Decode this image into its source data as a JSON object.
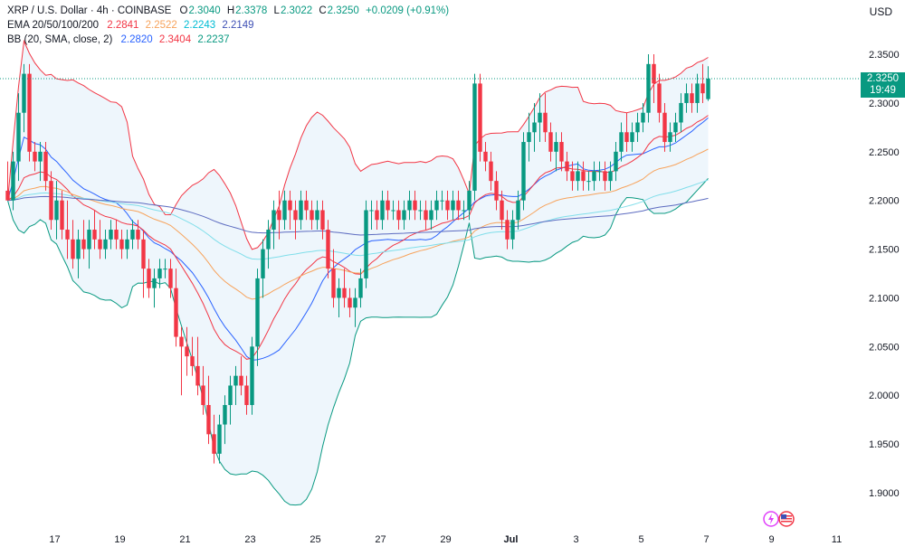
{
  "legend": {
    "symbol": "XRP / U.S. Dollar · 4h · COINBASE",
    "open_label": "O",
    "open": "2.3040",
    "high_label": "H",
    "high": "2.3378",
    "low_label": "L",
    "low": "2.3022",
    "close_label": "C",
    "close": "2.3250",
    "change": "+0.0209 (+0.91%)",
    "ema_label": "EMA 20/50/100/200",
    "ema20": "2.2841",
    "ema50": "2.2522",
    "ema100": "2.2243",
    "ema200": "2.2149",
    "bb_label": "BB (20, SMA, close, 2)",
    "bb_basis": "2.2820",
    "bb_upper": "2.3404",
    "bb_lower": "2.2237"
  },
  "currency": "USD",
  "price_badge": {
    "price": "2.3250",
    "countdown": "19:49"
  },
  "colors": {
    "up": "#089981",
    "down": "#f23645",
    "ema20": "#f23645",
    "ema50": "#f7a35c",
    "ema100": "#80deea",
    "ema200": "#5c6bc0",
    "bb_basis": "#2962ff",
    "bb_upper": "#f23645",
    "bb_lower": "#089981",
    "bb_fill": "#eef6fc"
  },
  "chart_data": {
    "type": "candlestick",
    "ylim": [
      1.86,
      2.38
    ],
    "y_ticks": [
      "2.3500",
      "2.3000",
      "2.2500",
      "2.2000",
      "2.1500",
      "2.1000",
      "2.0500",
      "2.0000",
      "1.9500",
      "1.9000"
    ],
    "x_ticks": [
      {
        "label": "17",
        "bar": 4
      },
      {
        "label": "19",
        "bar": 16
      },
      {
        "label": "21",
        "bar": 28
      },
      {
        "label": "23",
        "bar": 40
      },
      {
        "label": "25",
        "bar": 52
      },
      {
        "label": "27",
        "bar": 64
      },
      {
        "label": "29",
        "bar": 76
      },
      {
        "label": "Jul",
        "bar": 88
      },
      {
        "label": "3",
        "bar": 100
      },
      {
        "label": "5",
        "bar": 112
      },
      {
        "label": "7",
        "bar": 124
      },
      {
        "label": "9",
        "bar": 136
      },
      {
        "label": "11",
        "bar": 148
      }
    ],
    "last_price": 2.325,
    "candles": [
      [
        2.21,
        2.24,
        2.2,
        2.2
      ],
      [
        2.2,
        2.25,
        2.19,
        2.24
      ],
      [
        2.24,
        2.31,
        2.22,
        2.29
      ],
      [
        2.29,
        2.34,
        2.27,
        2.33
      ],
      [
        2.33,
        2.34,
        2.24,
        2.25
      ],
      [
        2.25,
        2.26,
        2.23,
        2.24
      ],
      [
        2.24,
        2.26,
        2.22,
        2.25
      ],
      [
        2.25,
        2.26,
        2.21,
        2.22
      ],
      [
        2.22,
        2.23,
        2.17,
        2.18
      ],
      [
        2.18,
        2.22,
        2.16,
        2.2
      ],
      [
        2.2,
        2.21,
        2.16,
        2.17
      ],
      [
        2.17,
        2.2,
        2.14,
        2.16
      ],
      [
        2.16,
        2.18,
        2.13,
        2.14
      ],
      [
        2.14,
        2.17,
        2.12,
        2.16
      ],
      [
        2.16,
        2.18,
        2.14,
        2.15
      ],
      [
        2.15,
        2.18,
        2.13,
        2.17
      ],
      [
        2.17,
        2.19,
        2.15,
        2.16
      ],
      [
        2.16,
        2.18,
        2.14,
        2.15
      ],
      [
        2.15,
        2.17,
        2.14,
        2.16
      ],
      [
        2.16,
        2.18,
        2.15,
        2.17
      ],
      [
        2.17,
        2.18,
        2.15,
        2.16
      ],
      [
        2.16,
        2.17,
        2.14,
        2.15
      ],
      [
        2.15,
        2.17,
        2.14,
        2.16
      ],
      [
        2.16,
        2.18,
        2.15,
        2.17
      ],
      [
        2.17,
        2.18,
        2.15,
        2.16
      ],
      [
        2.16,
        2.17,
        2.1,
        2.13
      ],
      [
        2.13,
        2.14,
        2.1,
        2.11
      ],
      [
        2.11,
        2.13,
        2.09,
        2.12
      ],
      [
        2.12,
        2.14,
        2.11,
        2.13
      ],
      [
        2.13,
        2.14,
        2.12,
        2.13
      ],
      [
        2.13,
        2.14,
        2.1,
        2.11
      ],
      [
        2.11,
        2.13,
        2.05,
        2.06
      ],
      [
        2.06,
        2.07,
        2.0,
        2.05
      ],
      [
        2.05,
        2.07,
        2.02,
        2.04
      ],
      [
        2.04,
        2.06,
        2.02,
        2.03
      ],
      [
        2.03,
        2.06,
        2.0,
        2.01
      ],
      [
        2.01,
        2.03,
        1.98,
        1.99
      ],
      [
        1.99,
        2.02,
        1.95,
        1.96
      ],
      [
        1.96,
        1.98,
        1.93,
        1.94
      ],
      [
        1.94,
        1.98,
        1.93,
        1.97
      ],
      [
        1.97,
        2.0,
        1.95,
        1.99
      ],
      [
        1.99,
        2.02,
        1.97,
        2.01
      ],
      [
        2.01,
        2.03,
        1.99,
        2.02
      ],
      [
        2.02,
        2.04,
        2.0,
        2.01
      ],
      [
        2.01,
        2.02,
        1.98,
        1.99
      ],
      [
        1.99,
        2.06,
        1.98,
        2.05
      ],
      [
        2.05,
        2.13,
        2.03,
        2.12
      ],
      [
        2.12,
        2.16,
        2.1,
        2.15
      ],
      [
        2.15,
        2.18,
        2.13,
        2.17
      ],
      [
        2.17,
        2.2,
        2.15,
        2.19
      ],
      [
        2.19,
        2.21,
        2.16,
        2.18
      ],
      [
        2.18,
        2.21,
        2.17,
        2.2
      ],
      [
        2.2,
        2.21,
        2.17,
        2.19
      ],
      [
        2.19,
        2.2,
        2.16,
        2.18
      ],
      [
        2.18,
        2.21,
        2.17,
        2.2
      ],
      [
        2.2,
        2.21,
        2.18,
        2.19
      ],
      [
        2.19,
        2.2,
        2.17,
        2.18
      ],
      [
        2.18,
        2.2,
        2.17,
        2.19
      ],
      [
        2.19,
        2.2,
        2.16,
        2.17
      ],
      [
        2.17,
        2.18,
        2.12,
        2.13
      ],
      [
        2.13,
        2.15,
        2.09,
        2.1
      ],
      [
        2.1,
        2.12,
        2.08,
        2.11
      ],
      [
        2.11,
        2.13,
        2.09,
        2.1
      ],
      [
        2.1,
        2.11,
        2.08,
        2.09
      ],
      [
        2.09,
        2.11,
        2.07,
        2.1
      ],
      [
        2.1,
        2.13,
        2.09,
        2.12
      ],
      [
        2.12,
        2.2,
        2.11,
        2.19
      ],
      [
        2.19,
        2.2,
        2.17,
        2.19
      ],
      [
        2.19,
        2.2,
        2.17,
        2.18
      ],
      [
        2.18,
        2.21,
        2.17,
        2.2
      ],
      [
        2.2,
        2.21,
        2.18,
        2.19
      ],
      [
        2.19,
        2.2,
        2.18,
        2.19
      ],
      [
        2.19,
        2.2,
        2.17,
        2.18
      ],
      [
        2.18,
        2.2,
        2.17,
        2.19
      ],
      [
        2.19,
        2.21,
        2.18,
        2.2
      ],
      [
        2.2,
        2.21,
        2.18,
        2.19
      ],
      [
        2.19,
        2.2,
        2.18,
        2.19
      ],
      [
        2.19,
        2.2,
        2.17,
        2.18
      ],
      [
        2.18,
        2.2,
        2.17,
        2.19
      ],
      [
        2.19,
        2.21,
        2.18,
        2.2
      ],
      [
        2.2,
        2.21,
        2.19,
        2.2
      ],
      [
        2.2,
        2.21,
        2.18,
        2.19
      ],
      [
        2.19,
        2.21,
        2.18,
        2.2
      ],
      [
        2.2,
        2.21,
        2.18,
        2.19
      ],
      [
        2.19,
        2.2,
        2.18,
        2.19
      ],
      [
        2.19,
        2.22,
        2.18,
        2.21
      ],
      [
        2.21,
        2.33,
        2.2,
        2.32
      ],
      [
        2.32,
        2.33,
        2.24,
        2.25
      ],
      [
        2.25,
        2.26,
        2.23,
        2.24
      ],
      [
        2.24,
        2.25,
        2.21,
        2.22
      ],
      [
        2.22,
        2.23,
        2.19,
        2.2
      ],
      [
        2.2,
        2.21,
        2.17,
        2.18
      ],
      [
        2.18,
        2.19,
        2.15,
        2.16
      ],
      [
        2.16,
        2.19,
        2.15,
        2.18
      ],
      [
        2.18,
        2.21,
        2.17,
        2.2
      ],
      [
        2.2,
        2.27,
        2.19,
        2.26
      ],
      [
        2.26,
        2.29,
        2.24,
        2.27
      ],
      [
        2.27,
        2.3,
        2.25,
        2.28
      ],
      [
        2.28,
        2.31,
        2.26,
        2.29
      ],
      [
        2.29,
        2.31,
        2.26,
        2.27
      ],
      [
        2.27,
        2.28,
        2.24,
        2.25
      ],
      [
        2.25,
        2.27,
        2.23,
        2.26
      ],
      [
        2.26,
        2.27,
        2.23,
        2.24
      ],
      [
        2.24,
        2.25,
        2.22,
        2.23
      ],
      [
        2.23,
        2.24,
        2.21,
        2.22
      ],
      [
        2.22,
        2.24,
        2.21,
        2.23
      ],
      [
        2.23,
        2.24,
        2.21,
        2.22
      ],
      [
        2.22,
        2.23,
        2.21,
        2.22
      ],
      [
        2.22,
        2.24,
        2.21,
        2.23
      ],
      [
        2.23,
        2.24,
        2.22,
        2.23
      ],
      [
        2.23,
        2.24,
        2.21,
        2.22
      ],
      [
        2.22,
        2.24,
        2.21,
        2.23
      ],
      [
        2.23,
        2.26,
        2.22,
        2.25
      ],
      [
        2.25,
        2.28,
        2.24,
        2.27
      ],
      [
        2.27,
        2.29,
        2.25,
        2.26
      ],
      [
        2.26,
        2.28,
        2.25,
        2.27
      ],
      [
        2.27,
        2.29,
        2.26,
        2.28
      ],
      [
        2.28,
        2.3,
        2.27,
        2.29
      ],
      [
        2.29,
        2.35,
        2.28,
        2.34
      ],
      [
        2.34,
        2.35,
        2.3,
        2.32
      ],
      [
        2.32,
        2.33,
        2.28,
        2.29
      ],
      [
        2.29,
        2.3,
        2.25,
        2.26
      ],
      [
        2.26,
        2.28,
        2.25,
        2.27
      ],
      [
        2.27,
        2.29,
        2.26,
        2.28
      ],
      [
        2.28,
        2.31,
        2.27,
        2.3
      ],
      [
        2.3,
        2.32,
        2.29,
        2.31
      ],
      [
        2.31,
        2.32,
        2.29,
        2.3
      ],
      [
        2.3,
        2.33,
        2.29,
        2.32
      ],
      [
        2.32,
        2.34,
        2.3,
        2.31
      ],
      [
        2.304,
        2.3378,
        2.3022,
        2.325
      ]
    ]
  }
}
